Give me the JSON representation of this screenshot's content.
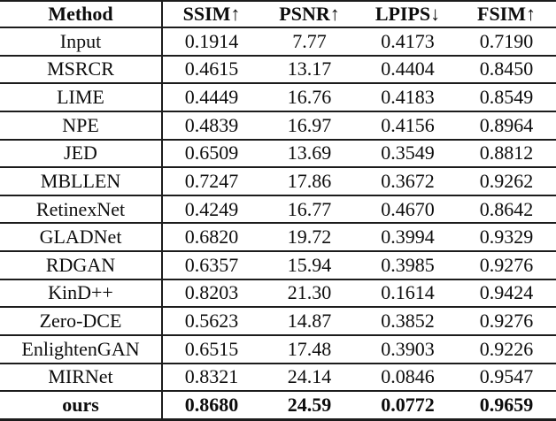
{
  "table": {
    "headers": [
      "Method",
      "SSIM↑",
      "PSNR↑",
      "LPIPS↓",
      "FSIM↑"
    ],
    "rows": [
      {
        "method": "Input",
        "values": [
          "0.1914",
          "7.77",
          "0.4173",
          "0.7190"
        ],
        "bold": false
      },
      {
        "method": "MSRCR",
        "values": [
          "0.4615",
          "13.17",
          "0.4404",
          "0.8450"
        ],
        "bold": false
      },
      {
        "method": "LIME",
        "values": [
          "0.4449",
          "16.76",
          "0.4183",
          "0.8549"
        ],
        "bold": false
      },
      {
        "method": "NPE",
        "values": [
          "0.4839",
          "16.97",
          "0.4156",
          "0.8964"
        ],
        "bold": false
      },
      {
        "method": "JED",
        "values": [
          "0.6509",
          "13.69",
          "0.3549",
          "0.8812"
        ],
        "bold": false
      },
      {
        "method": "MBLLEN",
        "values": [
          "0.7247",
          "17.86",
          "0.3672",
          "0.9262"
        ],
        "bold": false
      },
      {
        "method": "RetinexNet",
        "values": [
          "0.4249",
          "16.77",
          "0.4670",
          "0.8642"
        ],
        "bold": false
      },
      {
        "method": "GLADNet",
        "values": [
          "0.6820",
          "19.72",
          "0.3994",
          "0.9329"
        ],
        "bold": false
      },
      {
        "method": "RDGAN",
        "values": [
          "0.6357",
          "15.94",
          "0.3985",
          "0.9276"
        ],
        "bold": false
      },
      {
        "method": "KinD++",
        "values": [
          "0.8203",
          "21.30",
          "0.1614",
          "0.9424"
        ],
        "bold": false
      },
      {
        "method": "Zero-DCE",
        "values": [
          "0.5623",
          "14.87",
          "0.3852",
          "0.9276"
        ],
        "bold": false
      },
      {
        "method": "EnlightenGAN",
        "values": [
          "0.6515",
          "17.48",
          "0.3903",
          "0.9226"
        ],
        "bold": false
      },
      {
        "method": "MIRNet",
        "values": [
          "0.8321",
          "24.14",
          "0.0846",
          "0.9547"
        ],
        "bold": false
      },
      {
        "method": "ours",
        "values": [
          "0.8680",
          "24.59",
          "0.0772",
          "0.9659"
        ],
        "bold": true
      }
    ]
  },
  "chart_data": {
    "type": "table",
    "columns": [
      "Method",
      "SSIM↑",
      "PSNR↑",
      "LPIPS↓",
      "FSIM↑"
    ],
    "rows": [
      [
        "Input",
        0.1914,
        7.77,
        0.4173,
        0.719
      ],
      [
        "MSRCR",
        0.4615,
        13.17,
        0.4404,
        0.845
      ],
      [
        "LIME",
        0.4449,
        16.76,
        0.4183,
        0.8549
      ],
      [
        "NPE",
        0.4839,
        16.97,
        0.4156,
        0.8964
      ],
      [
        "JED",
        0.6509,
        13.69,
        0.3549,
        0.8812
      ],
      [
        "MBLLEN",
        0.7247,
        17.86,
        0.3672,
        0.9262
      ],
      [
        "RetinexNet",
        0.4249,
        16.77,
        0.467,
        0.8642
      ],
      [
        "GLADNet",
        0.682,
        19.72,
        0.3994,
        0.9329
      ],
      [
        "RDGAN",
        0.6357,
        15.94,
        0.3985,
        0.9276
      ],
      [
        "KinD++",
        0.8203,
        21.3,
        0.1614,
        0.9424
      ],
      [
        "Zero-DCE",
        0.5623,
        14.87,
        0.3852,
        0.9276
      ],
      [
        "EnlightenGAN",
        0.6515,
        17.48,
        0.3903,
        0.9226
      ],
      [
        "MIRNet",
        0.8321,
        24.14,
        0.0846,
        0.9547
      ],
      [
        "ours",
        0.868,
        24.59,
        0.0772,
        0.9659
      ]
    ],
    "best_row": "ours",
    "notes": "ours row rendered in bold"
  },
  "colors": {
    "background": "#ffffff",
    "text": "#0d0d0d",
    "rule": "#1c1c1c"
  }
}
